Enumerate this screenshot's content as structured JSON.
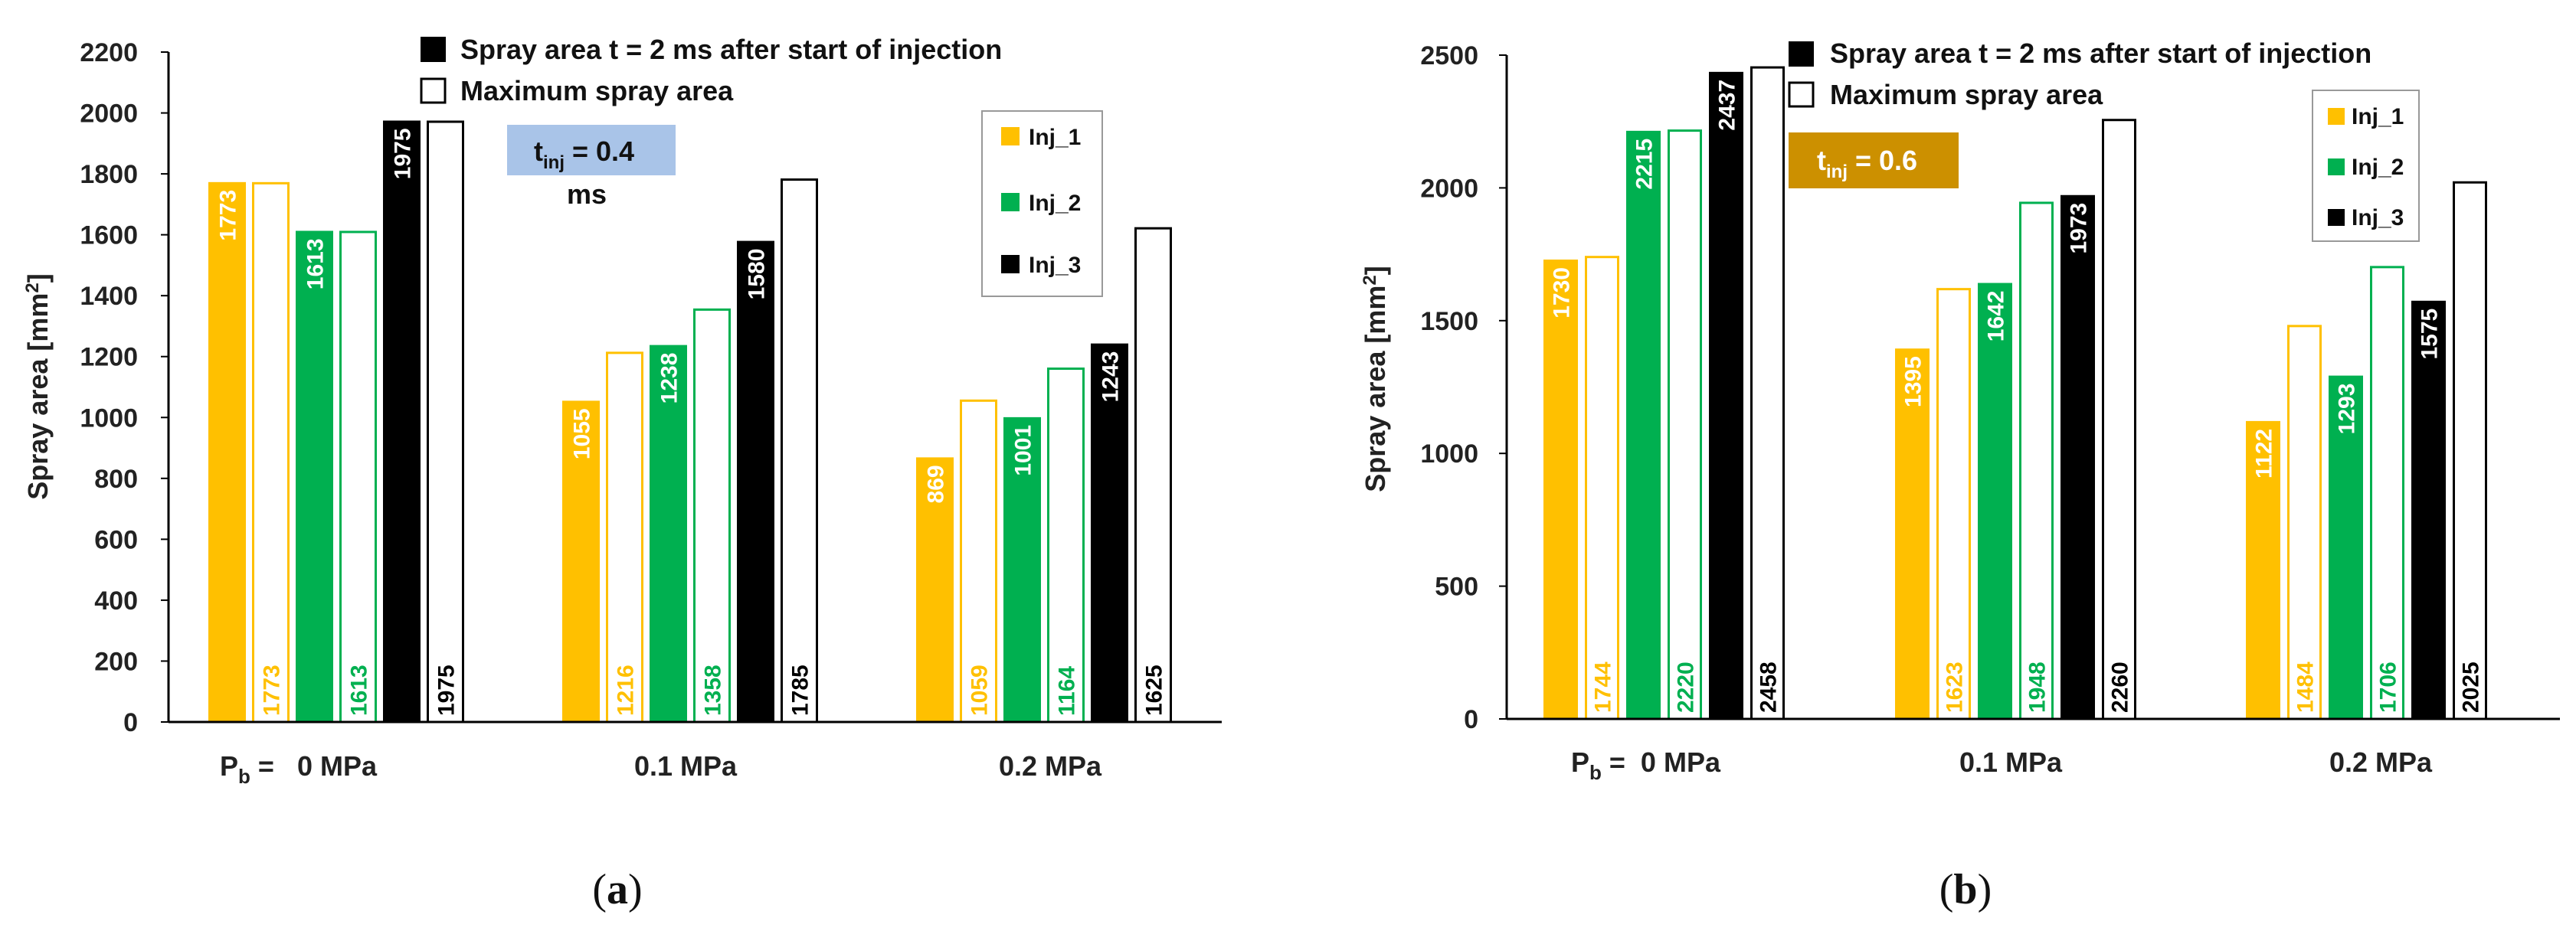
{
  "colors": {
    "inj1": "#FFC000",
    "inj2": "#00B050",
    "inj3": "#000000",
    "tinj_a": "#A9C4E8",
    "tinj_b": "#CC9000"
  },
  "chart_data": [
    {
      "type": "bar",
      "panel_label": "(a)",
      "ylabel": "Spray area [mm²]",
      "ylabel_main": "Spray area [mm",
      "ylabel_sup": "2",
      "ylabel_close": "]",
      "ylim": [
        0,
        2200
      ],
      "yticks": [
        "0",
        "200",
        "400",
        "600",
        "800",
        "1000",
        "1200",
        "1400",
        "1600",
        "1800",
        "2000",
        "2200"
      ],
      "categories": [
        "Pb = 0 MPa",
        "0.1 MPa",
        "0.2 MPa"
      ],
      "category_first": {
        "p": "P",
        "sub": "b",
        "rest": " =   0 MPa"
      },
      "legend_main": [
        "Spray area t = 2 ms after start of injection",
        "Maximum spray area"
      ],
      "legend_inj": [
        "Inj_1",
        "Inj_2",
        "Inj_3"
      ],
      "tinj": {
        "t": "t",
        "sub": "inj",
        "rest": " = 0.4",
        "unit": "ms"
      },
      "series": [
        {
          "name": "Inj_1 t = 2 ms",
          "values": [
            1773,
            1055,
            869
          ]
        },
        {
          "name": "Inj_1 maximum",
          "values": [
            1773,
            1216,
            1059
          ]
        },
        {
          "name": "Inj_2 t = 2 ms",
          "values": [
            1613,
            1238,
            1001
          ]
        },
        {
          "name": "Inj_2 maximum",
          "values": [
            1613,
            1358,
            1164
          ]
        },
        {
          "name": "Inj_3 t = 2 ms",
          "values": [
            1975,
            1580,
            1243
          ]
        },
        {
          "name": "Inj_3 maximum",
          "values": [
            1975,
            1785,
            1625
          ]
        }
      ]
    },
    {
      "type": "bar",
      "panel_label": "(b)",
      "ylabel": "Spray area [mm²]",
      "ylabel_main": "Spray area [mm",
      "ylabel_sup": "2",
      "ylabel_close": "]",
      "ylim": [
        0,
        2500
      ],
      "yticks": [
        "0",
        "500",
        "1000",
        "1500",
        "2000",
        "2500"
      ],
      "categories": [
        "Pb = 0 MPa",
        "0.1 MPa",
        "0.2 MPa"
      ],
      "category_first": {
        "p": "P",
        "sub": "b",
        "rest": " =  0 MPa"
      },
      "legend_main": [
        "Spray area t = 2 ms after start of injection",
        "Maximum spray area"
      ],
      "legend_inj": [
        "Inj_1",
        "Inj_2",
        "Inj_3"
      ],
      "tinj": {
        "t": "t",
        "sub": "inj",
        "rest": " = 0.6",
        "unit": ""
      },
      "series": [
        {
          "name": "Inj_1 t = 2 ms",
          "values": [
            1730,
            1395,
            1122
          ]
        },
        {
          "name": "Inj_1 maximum",
          "values": [
            1744,
            1623,
            1484
          ]
        },
        {
          "name": "Inj_2 t = 2 ms",
          "values": [
            2215,
            1642,
            1293
          ]
        },
        {
          "name": "Inj_2 maximum",
          "values": [
            2220,
            1948,
            1706
          ]
        },
        {
          "name": "Inj_3 t = 2 ms",
          "values": [
            2437,
            1973,
            1575
          ]
        },
        {
          "name": "Inj_3 maximum",
          "values": [
            2458,
            2260,
            2025
          ]
        }
      ]
    }
  ]
}
